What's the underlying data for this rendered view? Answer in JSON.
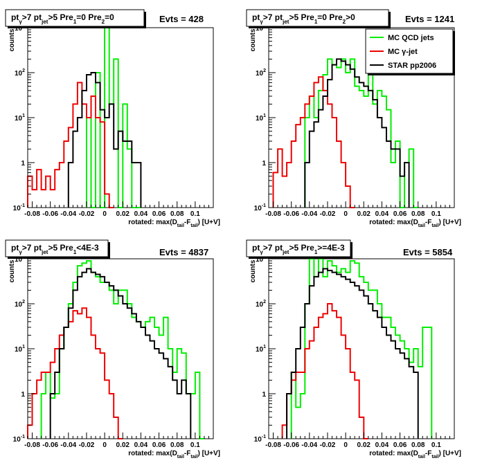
{
  "axis_labels": {
    "ylabel": "counts",
    "xlabel": "rotated: max(D",
    "xlabel_sub1": "tail",
    "xlabel_mid": "-F",
    "xlabel_sub2": "tail",
    "xlabel_end": ") [U+V]"
  },
  "legend": {
    "entries": [
      {
        "label": "MC QCD jets",
        "color": "#00ee00"
      },
      {
        "label": "MC γ-jet",
        "color": "#ee0000"
      },
      {
        "label": "STAR pp2006",
        "color": "#000000"
      }
    ]
  },
  "panels": [
    {
      "title": {
        "pt": "pt",
        "sub_g": "γ",
        "gt7": ">7  pt",
        "sub_jet": "jet",
        "gt5": ">5 Pre",
        "sub1": "1",
        "cut1": "=0 Pre",
        "sub2": "2",
        "cut2": "=0"
      },
      "evts": "Evts = 428"
    },
    {
      "title": {
        "pt": "pt",
        "sub_g": "γ",
        "gt7": ">7  pt",
        "sub_jet": "jet",
        "gt5": ">5 Pre",
        "sub1": "1",
        "cut1": "=0 Pre",
        "sub2": "2",
        "cut2": ">0"
      },
      "evts": "Evts = 1241"
    },
    {
      "title": {
        "pt": "pt",
        "sub_g": "γ",
        "gt7": ">7  pt",
        "sub_jet": "jet",
        "gt5": ">5 Pre",
        "sub1": "1",
        "cut1": "<4E-3",
        "sub2": "",
        "cut2": ""
      },
      "evts": "Evts = 4837"
    },
    {
      "title": {
        "pt": "pt",
        "sub_g": "γ",
        "gt7": ">7  pt",
        "sub_jet": "jet",
        "gt5": ">5 Pre",
        "sub1": "1",
        "cut1": ">=4E-3",
        "sub2": "",
        "cut2": ""
      },
      "evts": "Evts = 5854"
    }
  ],
  "chart_data": [
    {
      "type": "histogram-step",
      "scale_y": "log",
      "xlim": [
        -0.085,
        0.12
      ],
      "ylim": [
        0.1,
        1000
      ],
      "bin_width": 0.005,
      "x_ticks": [
        -0.08,
        -0.06,
        -0.04,
        -0.02,
        0,
        0.02,
        0.04,
        0.06,
        0.08,
        0.1
      ],
      "x_tick_labels": [
        "-0.08",
        "-0.06",
        "-0.04",
        "-0.02",
        "0",
        "0.02",
        "0.04",
        "0.06",
        "0.08",
        "0.1"
      ],
      "y_ticks": [
        0.1,
        1,
        10,
        100,
        1000
      ],
      "series": [
        {
          "name": "MC QCD jets",
          "color": "#00ee00",
          "x_start": -0.02,
          "values": [
            10,
            0.1,
            100,
            0.1,
            1000,
            20,
            200,
            0.1,
            20,
            2,
            0.1,
            0.1
          ]
        },
        {
          "name": "MC γ-jet",
          "color": "#ee0000",
          "x_start": -0.085,
          "values": [
            0.5,
            0.25,
            0.7,
            0.25,
            0.5,
            0.25,
            0.7,
            1,
            3,
            6,
            20,
            60,
            20,
            10,
            30,
            10,
            8,
            0.2,
            0.1
          ]
        },
        {
          "name": "STAR pp2006",
          "color": "#000000",
          "x_start": -0.04,
          "values": [
            1,
            5,
            10,
            40,
            90,
            100,
            60,
            15,
            10,
            20,
            2,
            5,
            3,
            3,
            1,
            1
          ]
        }
      ]
    },
    {
      "type": "histogram-step",
      "scale_y": "log",
      "xlim": [
        -0.085,
        0.12
      ],
      "ylim": [
        0.1,
        1000
      ],
      "bin_width": 0.005,
      "x_ticks": [
        -0.08,
        -0.06,
        -0.04,
        -0.02,
        0,
        0.02,
        0.04,
        0.06,
        0.08,
        0.1
      ],
      "x_tick_labels": [
        "-0.08",
        "-0.06",
        "-0.04",
        "-0.02",
        "0",
        "0.02",
        "0.04",
        "0.06",
        "0.08",
        "0.1"
      ],
      "y_ticks": [
        0.1,
        1,
        10,
        100,
        1000
      ],
      "series": [
        {
          "name": "MC QCD jets",
          "color": "#00ee00",
          "x_start": -0.045,
          "values": [
            10,
            30,
            10,
            40,
            90,
            200,
            150,
            130,
            200,
            100,
            200,
            50,
            40,
            30,
            100,
            20,
            40,
            30,
            15,
            1,
            3,
            0.1,
            1,
            2,
            0.1
          ]
        },
        {
          "name": "MC γ-jet",
          "color": "#ee0000",
          "x_start": -0.08,
          "values": [
            0.6,
            2,
            0.5,
            1,
            3,
            7,
            10,
            20,
            30,
            60,
            80,
            40,
            20,
            10,
            3,
            1,
            0.3,
            0.1
          ]
        },
        {
          "name": "STAR pp2006",
          "color": "#000000",
          "x_start": -0.045,
          "values": [
            1,
            5,
            8,
            15,
            30,
            70,
            150,
            200,
            180,
            150,
            120,
            80,
            60,
            50,
            40,
            25,
            10,
            6,
            3,
            2,
            2,
            0.5,
            1
          ]
        }
      ]
    },
    {
      "type": "histogram-step",
      "scale_y": "log",
      "xlim": [
        -0.085,
        0.12
      ],
      "ylim": [
        0.1,
        1000
      ],
      "bin_width": 0.005,
      "x_ticks": [
        -0.08,
        -0.06,
        -0.04,
        -0.02,
        0,
        0.02,
        0.04,
        0.06,
        0.08,
        0.1
      ],
      "x_tick_labels": [
        "-0.08",
        "-0.06",
        "-0.04",
        "-0.02",
        "0",
        "0.02",
        "0.04",
        "0.06",
        "0.08",
        "0.1"
      ],
      "y_ticks": [
        0.1,
        1,
        10,
        100,
        1000
      ],
      "series": [
        {
          "name": "MC QCD jets",
          "color": "#00ee00",
          "x_start": -0.07,
          "values": [
            1,
            3,
            0.8,
            1,
            10,
            30,
            100,
            300,
            700,
            800,
            900,
            500,
            400,
            300,
            300,
            200,
            100,
            200,
            200,
            100,
            50,
            40,
            30,
            40,
            50,
            30,
            20,
            50,
            10,
            3,
            10,
            8,
            1,
            1,
            3,
            0.1
          ]
        },
        {
          "name": "MC γ-jet",
          "color": "#ee0000",
          "x_start": -0.085,
          "values": [
            0.2,
            1,
            2,
            3,
            3,
            5,
            10,
            20,
            30,
            40,
            70,
            60,
            80,
            50,
            20,
            10,
            8,
            2,
            1,
            0.3,
            0.1
          ]
        },
        {
          "name": "STAR pp2006",
          "color": "#000000",
          "x_start": -0.06,
          "values": [
            1,
            3,
            10,
            30,
            80,
            200,
            400,
            500,
            600,
            500,
            450,
            400,
            300,
            250,
            200,
            150,
            100,
            80,
            60,
            40,
            30,
            20,
            15,
            10,
            8,
            6,
            4,
            2,
            1,
            2,
            1
          ]
        }
      ]
    },
    {
      "type": "histogram-step",
      "scale_y": "log",
      "xlim": [
        -0.085,
        0.12
      ],
      "ylim": [
        0.1,
        1000
      ],
      "bin_width": 0.005,
      "x_ticks": [
        -0.08,
        -0.06,
        -0.04,
        -0.02,
        0,
        0.02,
        0.04,
        0.06,
        0.08,
        0.1
      ],
      "x_tick_labels": [
        "-0.08",
        "-0.06",
        "-0.04",
        "-0.02",
        "0",
        "0.02",
        "0.04",
        "0.06",
        "0.08",
        "0.1"
      ],
      "y_ticks": [
        0.1,
        1,
        10,
        100,
        1000
      ],
      "series": [
        {
          "name": "MC QCD jets",
          "color": "#00ee00",
          "x_start": -0.06,
          "values": [
            3,
            0.5,
            1,
            100,
            1000,
            400,
            1000,
            400,
            900,
            700,
            500,
            600,
            500,
            900,
            800,
            400,
            300,
            200,
            200,
            100,
            50,
            50,
            30,
            20,
            15,
            10,
            5,
            10,
            4,
            30,
            30
          ]
        },
        {
          "name": "MC γ-jet",
          "color": "#ee0000",
          "x_start": -0.07,
          "values": [
            0.2,
            1,
            2,
            3,
            3,
            10,
            15,
            30,
            50,
            60,
            100,
            70,
            50,
            20,
            10,
            3,
            2,
            0.3,
            0.1
          ]
        },
        {
          "name": "STAR pp2006",
          "color": "#000000",
          "x_start": -0.065,
          "values": [
            1,
            3,
            10,
            30,
            100,
            250,
            400,
            500,
            600,
            550,
            500,
            450,
            400,
            350,
            300,
            250,
            200,
            150,
            100,
            70,
            50,
            30,
            20,
            15,
            10,
            8,
            6,
            4,
            3
          ]
        }
      ]
    }
  ]
}
